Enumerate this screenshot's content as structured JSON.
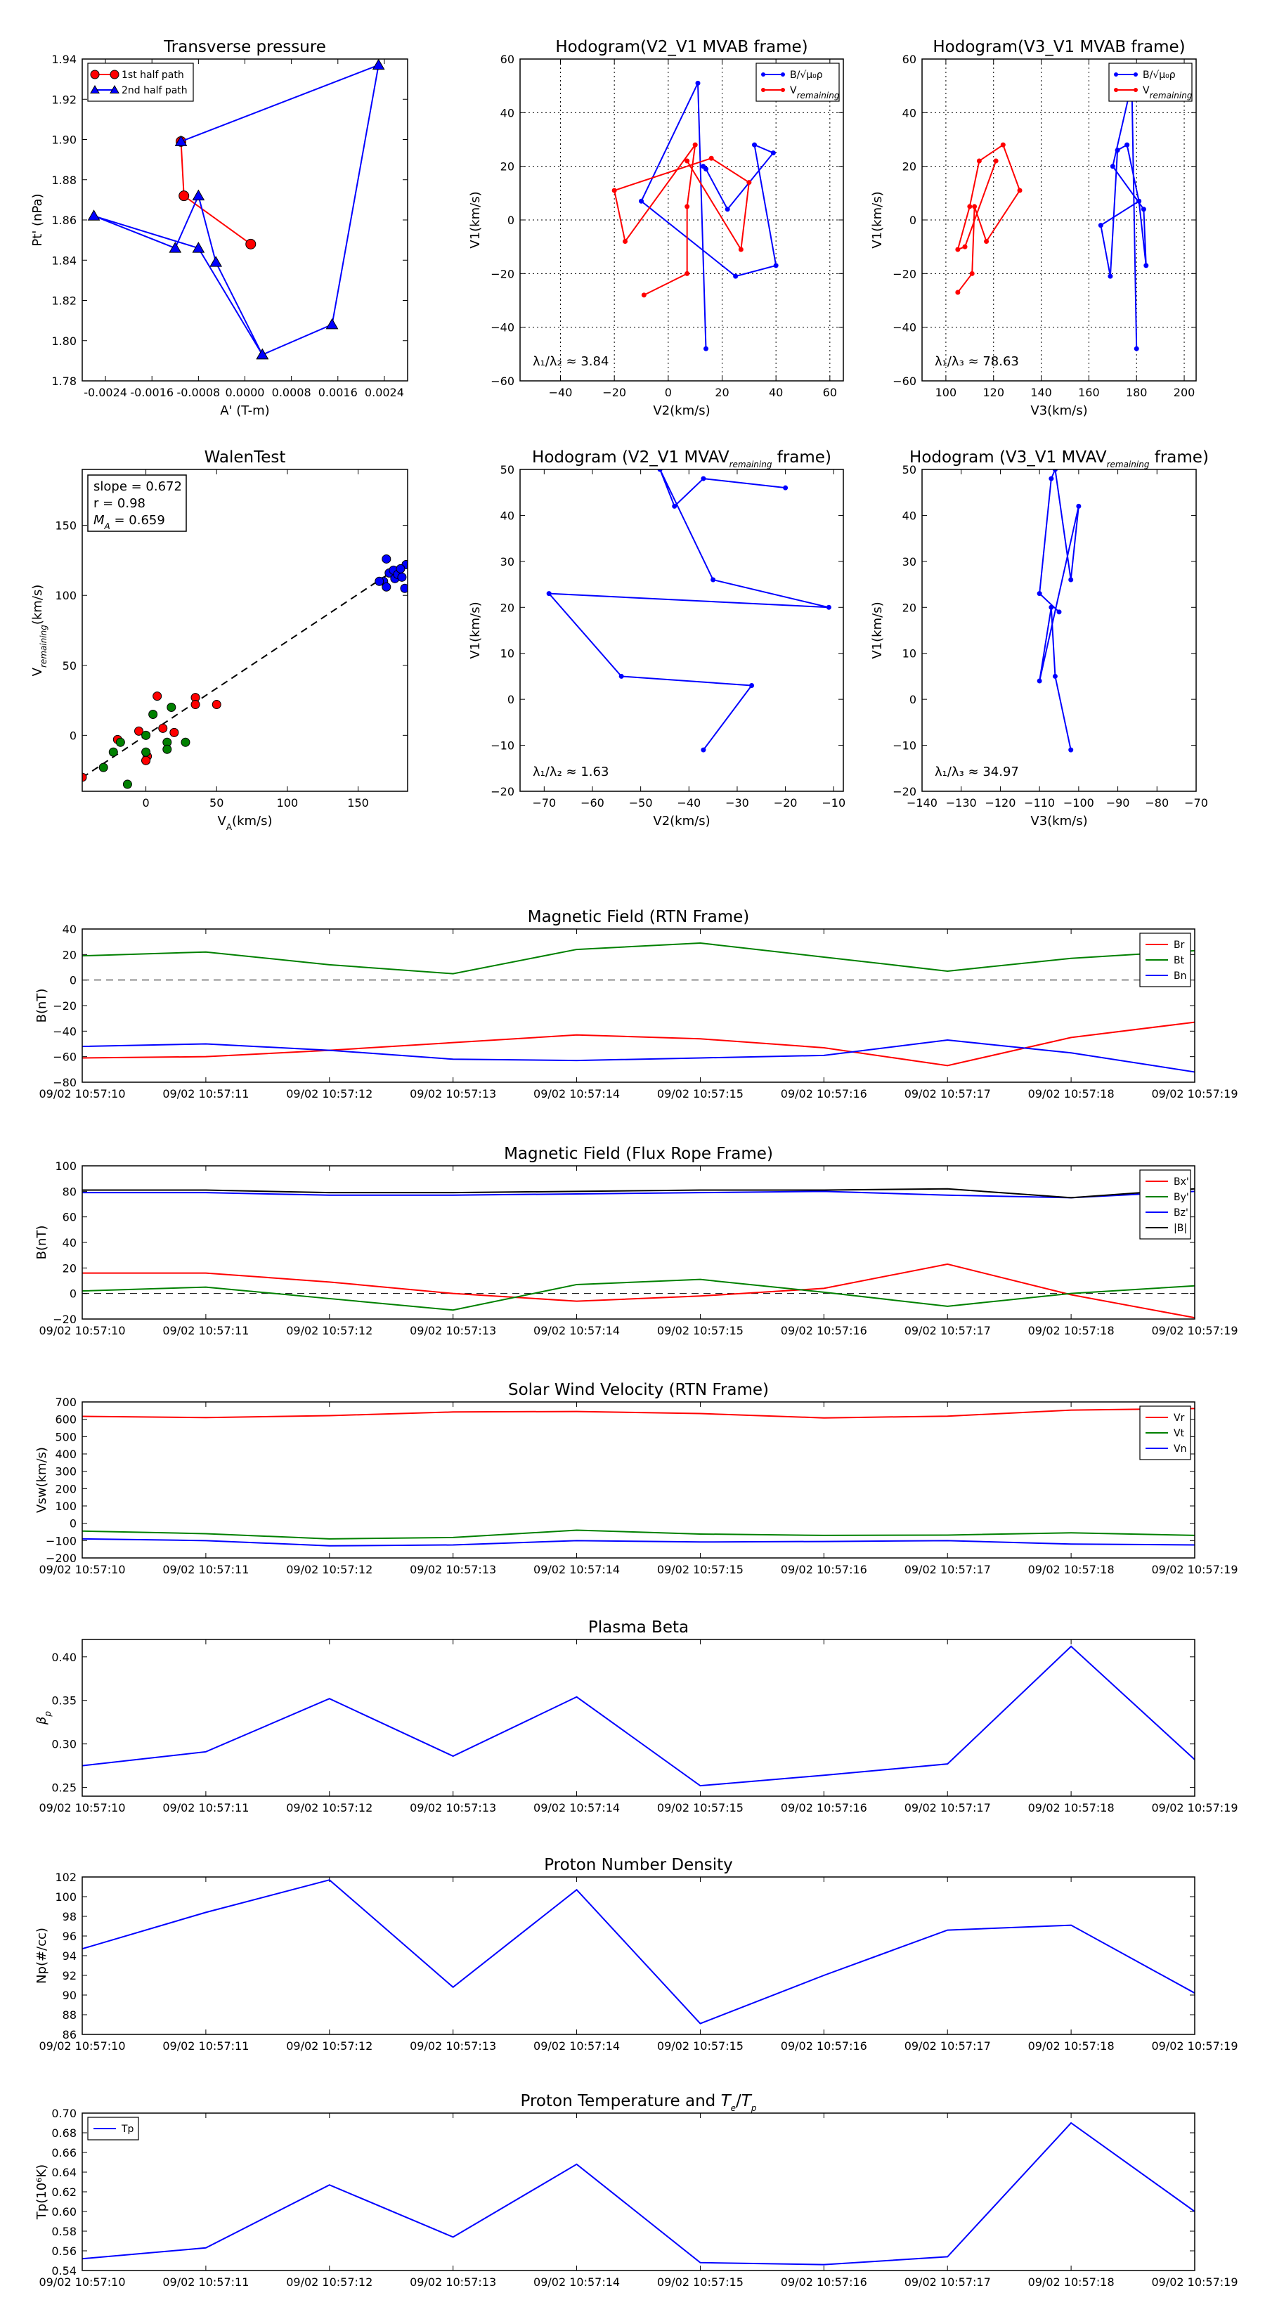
{
  "colors": {
    "red": "#ff0000",
    "green": "#008000",
    "blue": "#0000ff",
    "black": "#000000"
  },
  "chart_data": [
    {
      "id": "tp",
      "type": "scatter",
      "title": "Transverse pressure",
      "xlabel": "A' (T-m)",
      "ylabel": "Pt' (nPa)",
      "xlim": [
        -0.0028,
        0.0028
      ],
      "ylim": [
        1.78,
        1.94
      ],
      "xticks": [
        -0.0024,
        -0.0016,
        -0.0008,
        0.0,
        0.0008,
        0.0016,
        0.0024
      ],
      "xticklabels": [
        "-0.0024",
        "-0.0016",
        "-0.0008",
        "0.0000",
        "0.0008",
        "0.0016",
        "0.0024"
      ],
      "yticks": [
        1.78,
        1.8,
        1.82,
        1.84,
        1.86,
        1.88,
        1.9,
        1.92,
        1.94
      ],
      "yticklabels": [
        "1.78",
        "1.80",
        "1.82",
        "1.84",
        "1.86",
        "1.88",
        "1.90",
        "1.92",
        "1.94"
      ],
      "legend": "top-left",
      "series": [
        {
          "name": "1st half path",
          "color": "red",
          "marker": "circle",
          "x": [
            -0.0011,
            -0.00105,
            0.0001
          ],
          "y": [
            1.899,
            1.872,
            1.848
          ]
        },
        {
          "name": "2nd half path",
          "color": "blue",
          "marker": "triangle",
          "x": [
            -0.0011,
            0.0023,
            0.0015,
            0.0003,
            -0.0005,
            -0.0008,
            -0.0012,
            -0.0026,
            -0.0008,
            0.0003
          ],
          "y": [
            1.899,
            1.937,
            1.808,
            1.793,
            1.839,
            1.872,
            1.846,
            1.862,
            1.846,
            1.793
          ]
        }
      ]
    },
    {
      "id": "h21",
      "type": "line",
      "title": "Hodogram(V2_V1 MVAB frame)",
      "xlabel": "V2(km/s)",
      "ylabel": "V1(km/s)",
      "xlim": [
        -55,
        65
      ],
      "ylim": [
        -60,
        60
      ],
      "xticks": [
        -40,
        -20,
        0,
        20,
        40,
        60
      ],
      "xticklabels": [
        "−40",
        "−20",
        "0",
        "20",
        "40",
        "60"
      ],
      "yticks": [
        -60,
        -40,
        -20,
        0,
        20,
        40,
        60
      ],
      "yticklabels": [
        "−60",
        "−40",
        "−20",
        "0",
        "20",
        "40",
        "60"
      ],
      "grid": true,
      "legend": "top-right",
      "annotation": "λ₁/λ₂ ≈ 3.84",
      "series": [
        {
          "name": "B/√μ₀ρ",
          "color": "blue",
          "marker": "dot",
          "x": [
            14,
            11,
            -10,
            25,
            40,
            32,
            39,
            22,
            14,
            13
          ],
          "y": [
            -48,
            51,
            7,
            -21,
            -17,
            28,
            25,
            4,
            19,
            20
          ]
        },
        {
          "name": "V",
          "name_sub": "remaining",
          "color": "red",
          "marker": "dot",
          "x": [
            -9,
            7,
            7,
            10,
            -16,
            -20,
            16,
            30,
            27,
            7
          ],
          "y": [
            -28,
            -20,
            5,
            28,
            -8,
            11,
            23,
            14,
            -11,
            22
          ]
        }
      ]
    },
    {
      "id": "h31",
      "type": "line",
      "title": "Hodogram(V3_V1 MVAB frame)",
      "xlabel": "V3(km/s)",
      "ylabel": "V1(km/s)",
      "xlim": [
        90,
        205
      ],
      "ylim": [
        -60,
        60
      ],
      "xticks": [
        100,
        120,
        140,
        160,
        180,
        200
      ],
      "xticklabels": [
        "100",
        "120",
        "140",
        "160",
        "180",
        "200"
      ],
      "yticks": [
        -60,
        -40,
        -20,
        0,
        20,
        40,
        60
      ],
      "yticklabels": [
        "−60",
        "−40",
        "−20",
        "0",
        "20",
        "40",
        "60"
      ],
      "grid": true,
      "legend": "top-right",
      "annotation": "λ₁/λ₃ ≈ 78.63",
      "series": [
        {
          "name": "B/√μ₀ρ",
          "color": "blue",
          "marker": "dot",
          "x": [
            180,
            178,
            170,
            183,
            184,
            181,
            176,
            172,
            169,
            165,
            181
          ],
          "y": [
            -48,
            51,
            20,
            4,
            -17,
            7,
            28,
            26,
            -21,
            -2,
            7
          ]
        },
        {
          "name": "V",
          "name_sub": "remaining",
          "color": "red",
          "marker": "dot",
          "x": [
            105,
            111,
            112,
            117,
            131,
            124,
            114,
            110,
            105,
            108,
            121
          ],
          "y": [
            -27,
            -20,
            5,
            -8,
            11,
            28,
            22,
            5,
            -11,
            -10,
            22
          ]
        }
      ]
    },
    {
      "id": "walen",
      "type": "scatter",
      "title": "WalenTest",
      "xlabel": "V",
      "xlabel_sub": "A",
      "xlabel_tail": "(km/s)",
      "ylabel": "V",
      "ylabel_sub": "remaining",
      "ylabel_tail": "(km/s)",
      "xlim": [
        -45,
        185
      ],
      "ylim": [
        -40,
        190
      ],
      "xticks": [
        0,
        50,
        100,
        150
      ],
      "xticklabels": [
        "0",
        "50",
        "100",
        "150"
      ],
      "yticks": [
        0,
        50,
        100,
        150
      ],
      "yticklabels": [
        "0",
        "50",
        "100",
        "150"
      ],
      "annotations": [
        "slope = 0.672",
        "r = 0.98",
        "M",
        "A",
        "= 0.659"
      ],
      "fit": {
        "slope": 0.672,
        "intercept": 0,
        "x_range": [
          -45,
          185
        ]
      },
      "series": [
        {
          "name": "red",
          "color": "red",
          "x": [
            8,
            12,
            -5,
            1,
            0,
            35,
            35,
            50,
            -20,
            0,
            20,
            -45
          ],
          "y": [
            28,
            5,
            3,
            -15,
            -18,
            27,
            22,
            22,
            -3,
            -18,
            2,
            -30
          ]
        },
        {
          "name": "green",
          "color": "green",
          "x": [
            -30,
            -23,
            -13,
            -18,
            0,
            5,
            15,
            15,
            18,
            28,
            0
          ],
          "y": [
            -23,
            -12,
            -35,
            -5,
            0,
            15,
            -5,
            -10,
            20,
            -5,
            -12
          ]
        },
        {
          "name": "blue",
          "color": "blue",
          "x": [
            168,
            170,
            172,
            175,
            176,
            178,
            181,
            184,
            170,
            183,
            165,
            188,
            180
          ],
          "y": [
            110,
            126,
            116,
            118,
            112,
            115,
            113,
            122,
            106,
            105,
            110,
            110,
            119
          ]
        }
      ]
    },
    {
      "id": "h21r",
      "type": "line",
      "title": "Hodogram (V2_V1 MVAV",
      "title_sub": "remaining",
      "title_tail": " frame)",
      "xlabel": "V2(km/s)",
      "ylabel": "V1(km/s)",
      "xlim": [
        -75,
        -8
      ],
      "ylim": [
        -20,
        50
      ],
      "xticks": [
        -70,
        -60,
        -50,
        -40,
        -30,
        -20,
        -10
      ],
      "xticklabels": [
        "−70",
        "−60",
        "−50",
        "−40",
        "−30",
        "−20",
        "−10"
      ],
      "yticks": [
        -20,
        -10,
        0,
        10,
        20,
        30,
        40,
        50
      ],
      "yticklabels": [
        "−20",
        "−10",
        "0",
        "10",
        "20",
        "30",
        "40",
        "50"
      ],
      "annotation": "λ₁/λ₂ ≈ 1.63",
      "series": [
        {
          "name": "B",
          "color": "blue",
          "marker": "dot",
          "x": [
            -37,
            -27,
            -54,
            -69,
            -11,
            -35,
            -46,
            -43,
            -37,
            -20
          ],
          "y": [
            -11,
            3,
            5,
            23,
            20,
            26,
            50,
            42,
            48,
            46
          ]
        }
      ]
    },
    {
      "id": "h31r",
      "type": "line",
      "title": "Hodogram (V3_V1 MVAV",
      "title_sub": "remaining",
      "title_tail": " frame)",
      "xlabel": "V3(km/s)",
      "ylabel": "V1(km/s)",
      "xlim": [
        -140,
        -70
      ],
      "ylim": [
        -20,
        50
      ],
      "xticks": [
        -140,
        -130,
        -120,
        -110,
        -100,
        -90,
        -80,
        -70
      ],
      "xticklabels": [
        "−140",
        "−130",
        "−120",
        "−110",
        "−100",
        "−90",
        "−80",
        "−70"
      ],
      "yticks": [
        -20,
        -10,
        0,
        10,
        20,
        30,
        40,
        50
      ],
      "yticklabels": [
        "−20",
        "−10",
        "0",
        "10",
        "20",
        "30",
        "40",
        "50"
      ],
      "annotation": "λ₁/λ₃ ≈ 34.97",
      "series": [
        {
          "name": "B",
          "color": "blue",
          "marker": "dot",
          "x": [
            -102,
            -106,
            -107,
            -110,
            -100,
            -102,
            -106,
            -107,
            -110,
            -105
          ],
          "y": [
            -11,
            5,
            20,
            4,
            42,
            26,
            50,
            48,
            23,
            19
          ]
        }
      ]
    },
    {
      "id": "brtn",
      "type": "line",
      "title": "Magnetic Field (RTN Frame)",
      "ylabel": "B(nT)",
      "ylim": [
        -80,
        40
      ],
      "yticks": [
        -80,
        -60,
        -40,
        -20,
        0,
        20,
        40
      ],
      "yticklabels": [
        "−80",
        "−60",
        "−40",
        "−20",
        "0",
        "20",
        "40"
      ],
      "zero_line": true,
      "legend": "top-right",
      "series": [
        {
          "name": "Br",
          "color": "red",
          "values": [
            -61,
            -60,
            -55,
            -49,
            -43,
            -46,
            -53,
            -67,
            -45,
            -33
          ]
        },
        {
          "name": "Bt",
          "color": "green",
          "values": [
            19,
            22,
            12,
            5,
            24,
            29,
            18,
            7,
            17,
            23
          ]
        },
        {
          "name": "Bn",
          "color": "blue",
          "values": [
            -52,
            -50,
            -55,
            -62,
            -63,
            -61,
            -59,
            -47,
            -57,
            -72
          ]
        }
      ]
    },
    {
      "id": "bfr",
      "type": "line",
      "title": "Magnetic Field (Flux Rope Frame)",
      "ylabel": "B(nT)",
      "ylim": [
        -20,
        100
      ],
      "yticks": [
        -20,
        0,
        20,
        40,
        60,
        80,
        100
      ],
      "yticklabels": [
        "−20",
        "0",
        "20",
        "40",
        "60",
        "80",
        "100"
      ],
      "zero_line": true,
      "legend": "top-right",
      "series": [
        {
          "name": "Bx'",
          "color": "red",
          "values": [
            16,
            16,
            9,
            0,
            -6,
            -2,
            4,
            23,
            -1,
            -19
          ]
        },
        {
          "name": "By'",
          "color": "green",
          "values": [
            2,
            5,
            -4,
            -13,
            7,
            11,
            1,
            -10,
            0,
            6
          ]
        },
        {
          "name": "Bz'",
          "color": "blue",
          "values": [
            79,
            79,
            77,
            77,
            78,
            79,
            80,
            77,
            75,
            80
          ]
        },
        {
          "name": "|B|",
          "color": "black",
          "values": [
            81,
            81,
            79,
            79,
            80,
            81,
            81,
            82,
            75,
            82
          ]
        }
      ]
    },
    {
      "id": "vsw",
      "type": "line",
      "title": "Solar Wind Velocity (RTN Frame)",
      "ylabel": "Vsw(km/s)",
      "ylim": [
        -200,
        700
      ],
      "yticks": [
        -200,
        -100,
        0,
        100,
        200,
        300,
        400,
        500,
        600,
        700
      ],
      "yticklabels": [
        "−200",
        "−100",
        "0",
        "100",
        "200",
        "300",
        "400",
        "500",
        "600",
        "700"
      ],
      "legend": "top-right",
      "series": [
        {
          "name": "Vr",
          "color": "red",
          "values": [
            617,
            610,
            621,
            642,
            645,
            633,
            608,
            618,
            653,
            662
          ]
        },
        {
          "name": "Vt",
          "color": "green",
          "values": [
            -45,
            -60,
            -90,
            -82,
            -40,
            -62,
            -70,
            -68,
            -55,
            -70
          ]
        },
        {
          "name": "Vn",
          "color": "blue",
          "values": [
            -90,
            -100,
            -130,
            -125,
            -100,
            -108,
            -105,
            -100,
            -120,
            -125
          ]
        }
      ]
    },
    {
      "id": "beta",
      "type": "line",
      "title": "Plasma Beta",
      "ylabel": "β",
      "ylabel_sub": "p",
      "ylim": [
        0.24,
        0.42
      ],
      "yticks": [
        0.25,
        0.3,
        0.35,
        0.4
      ],
      "yticklabels": [
        "0.25",
        "0.30",
        "0.35",
        "0.40"
      ],
      "series": [
        {
          "name": "beta",
          "color": "blue",
          "values": [
            0.275,
            0.291,
            0.352,
            0.286,
            0.354,
            0.252,
            0.264,
            0.277,
            0.412,
            0.282
          ]
        }
      ]
    },
    {
      "id": "np",
      "type": "line",
      "title": "Proton Number Density",
      "ylabel": "Np(#/cc)",
      "ylim": [
        86,
        102
      ],
      "yticks": [
        86,
        88,
        90,
        92,
        94,
        96,
        98,
        100,
        102
      ],
      "yticklabels": [
        "86",
        "88",
        "90",
        "92",
        "94",
        "96",
        "98",
        "100",
        "102"
      ],
      "series": [
        {
          "name": "Np",
          "color": "blue",
          "values": [
            94.7,
            98.4,
            101.7,
            90.8,
            100.7,
            87.1,
            92.0,
            96.6,
            97.1,
            90.2
          ]
        }
      ]
    },
    {
      "id": "tp2",
      "type": "line",
      "title": "Proton Temperature and ",
      "title_math": "T",
      "title_math_sub": "e",
      "title_tail": "/",
      "title_math2": "T",
      "title_math2_sub": "p",
      "ylabel": "Tp(10⁶K)",
      "ylim": [
        0.54,
        0.7
      ],
      "yticks": [
        0.54,
        0.56,
        0.58,
        0.6,
        0.62,
        0.64,
        0.66,
        0.68,
        0.7
      ],
      "yticklabels": [
        "0.54",
        "0.56",
        "0.58",
        "0.60",
        "0.62",
        "0.64",
        "0.66",
        "0.68",
        "0.70"
      ],
      "legend": "top-left",
      "series": [
        {
          "name": "Tp",
          "color": "blue",
          "values": [
            0.552,
            0.563,
            0.627,
            0.574,
            0.648,
            0.548,
            0.546,
            0.554,
            0.69,
            0.6
          ]
        }
      ]
    }
  ],
  "time_labels": [
    "09/02 10:57:10",
    "09/02 10:57:11",
    "09/02 10:57:12",
    "09/02 10:57:13",
    "09/02 10:57:14",
    "09/02 10:57:15",
    "09/02 10:57:16",
    "09/02 10:57:17",
    "09/02 10:57:18",
    "09/02 10:57:19"
  ]
}
